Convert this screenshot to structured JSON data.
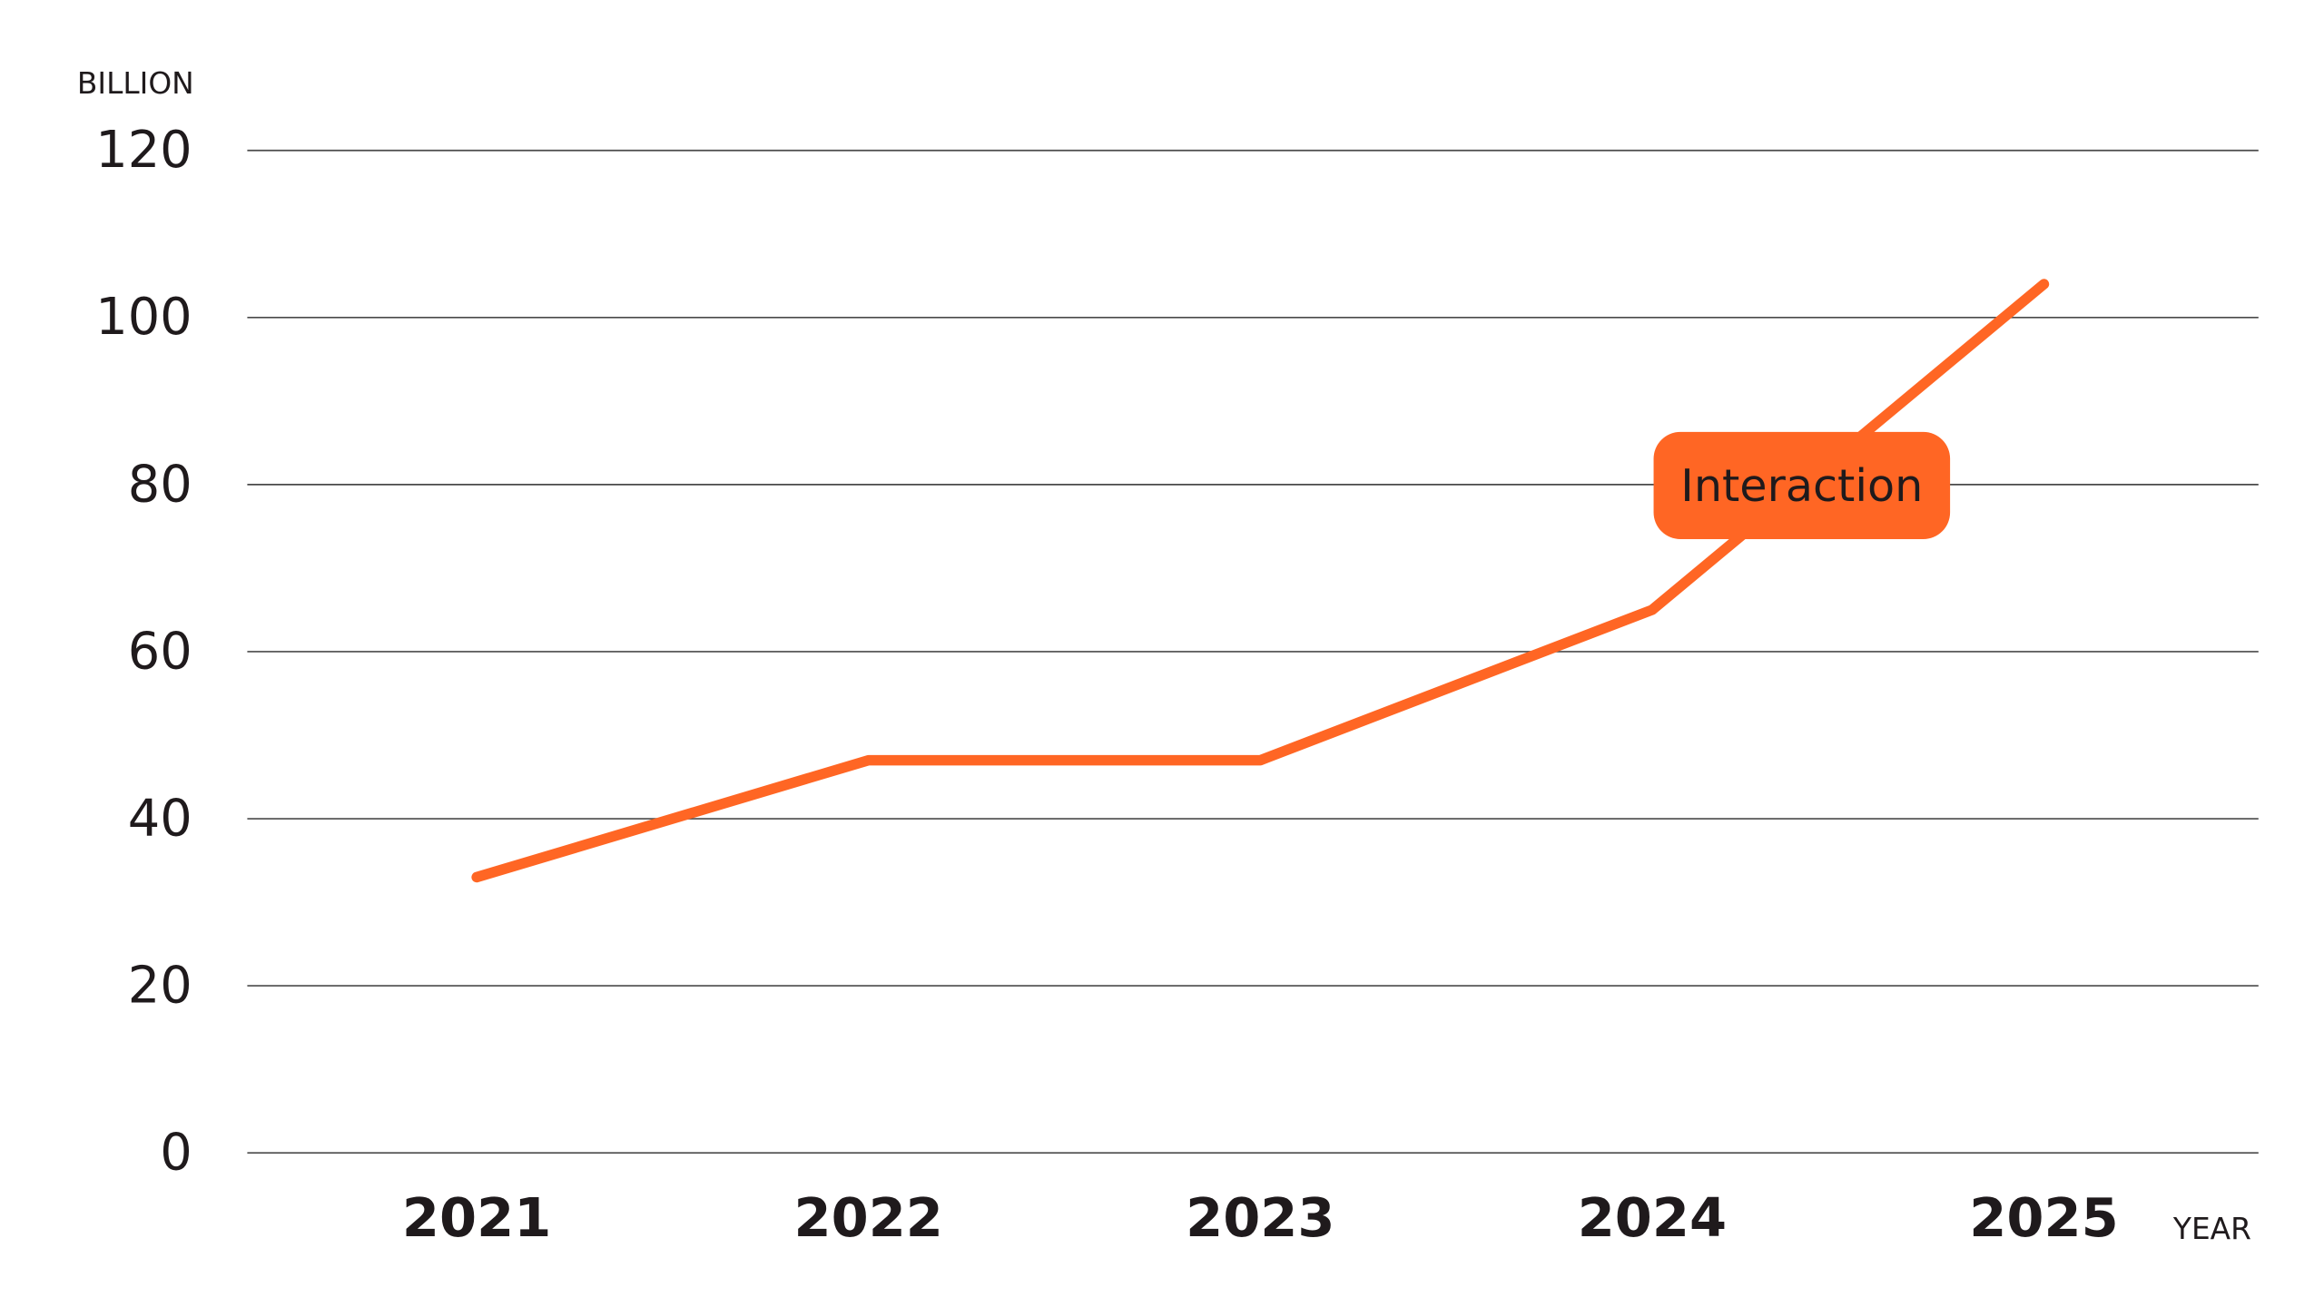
{
  "chart_data": {
    "type": "line",
    "y_label": "BILLION",
    "x_label": "YEAR",
    "categories": [
      "2021",
      "2022",
      "2023",
      "2024",
      "2025"
    ],
    "series": [
      {
        "name": "Interaction",
        "color": "#ff6624",
        "values": [
          33,
          47,
          47,
          65,
          104
        ]
      }
    ],
    "annotation": "Interaction",
    "ylim": [
      0,
      120
    ],
    "yticks": [
      0,
      20,
      40,
      60,
      80,
      100,
      120
    ],
    "grid": true
  }
}
